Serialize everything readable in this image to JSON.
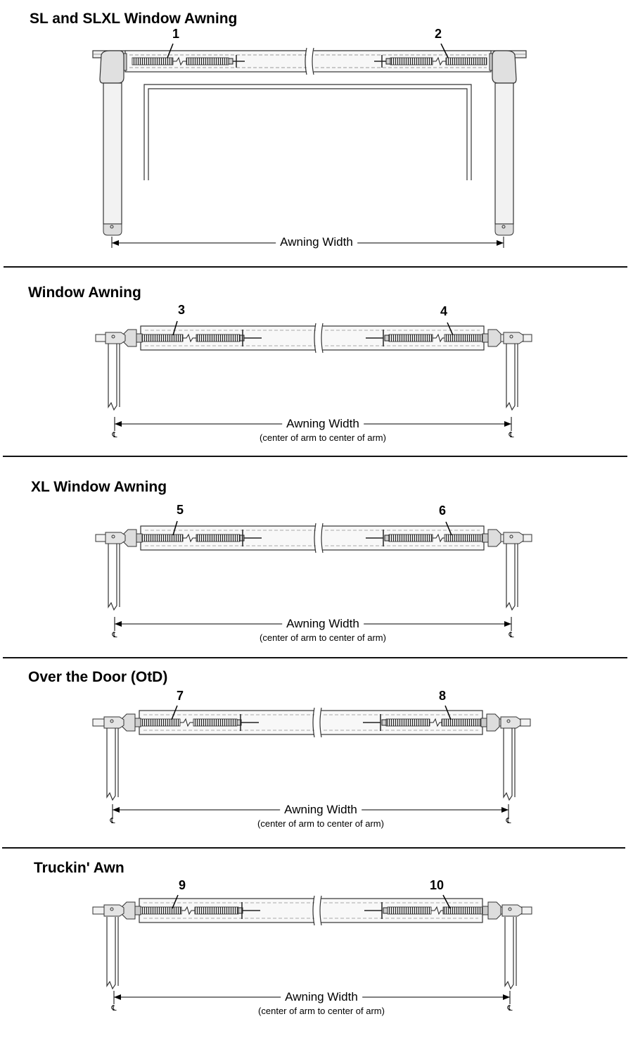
{
  "sections": [
    {
      "title": "SL and SLXL Window Awning",
      "callouts": [
        "1",
        "2"
      ],
      "dimension": "Awning Width",
      "subdimension": ""
    },
    {
      "title": "Window Awning",
      "callouts": [
        "3",
        "4"
      ],
      "dimension": "Awning Width",
      "subdimension": "(center of arm to center of arm)"
    },
    {
      "title": "XL Window Awning",
      "callouts": [
        "5",
        "6"
      ],
      "dimension": "Awning Width",
      "subdimension": "(center of arm to center of arm)"
    },
    {
      "title": "Over the Door (OtD)",
      "callouts": [
        "7",
        "8"
      ],
      "dimension": "Awning Width",
      "subdimension": "(center of arm to center of arm)"
    },
    {
      "title": "Truckin' Awn",
      "callouts": [
        "9",
        "10"
      ],
      "dimension": "Awning Width",
      "subdimension": "(center of arm to center of arm)"
    }
  ],
  "centerline_symbol": "℄"
}
